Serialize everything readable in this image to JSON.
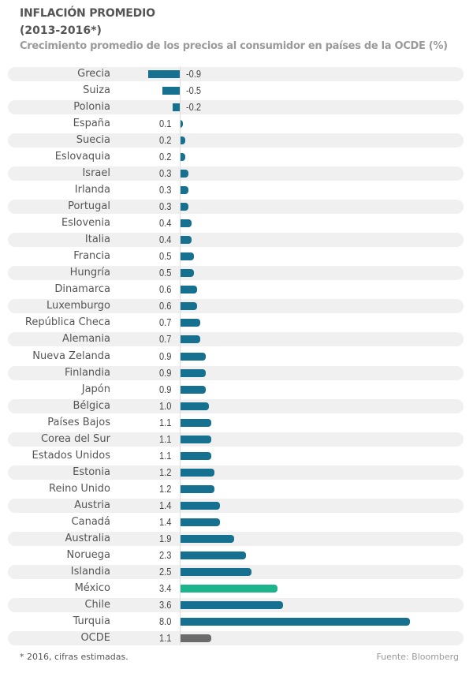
{
  "title": "INFLACIÓN PROMEDIO",
  "subtitle": "(2013-2016*)",
  "description": "Crecimiento promedio de los precios al consumidor en países de la OCDE (%)",
  "footnote": "* 2016, cifras estimadas.",
  "source": "Fuente: Bloomberg",
  "colors": {
    "default": "#16708f",
    "highlight": "#1db38b",
    "average": "#6b6b6b"
  },
  "chart_data": {
    "type": "bar",
    "orientation": "horizontal",
    "title": "INFLACIÓN PROMEDIO (2013-2016*)",
    "subtitle": "Crecimiento promedio de los precios al consumidor en países de la OCDE (%)",
    "xlabel": "",
    "ylabel": "",
    "grid": false,
    "categories": [
      "Grecia",
      "Suiza",
      "Polonia",
      "España",
      "Suecia",
      "Eslovaquia",
      "Israel",
      "Irlanda",
      "Portugal",
      "Eslovenia",
      "Italia",
      "Francia",
      "Hungría",
      "Dinamarca",
      "Luxemburgo",
      "República Checa",
      "Alemania",
      "Nueva Zelanda",
      "Finlandia",
      "Japón",
      "Bélgica",
      "Países Bajos",
      "Corea del Sur",
      "Estados Unidos",
      "Estonia",
      "Reino Unido",
      "Austria",
      "Canadá",
      "Australia",
      "Noruega",
      "Islandia",
      "México",
      "Chile",
      "Turquia",
      "OCDE"
    ],
    "values": [
      -0.9,
      -0.5,
      -0.2,
      0.1,
      0.2,
      0.2,
      0.3,
      0.3,
      0.3,
      0.4,
      0.4,
      0.5,
      0.5,
      0.6,
      0.6,
      0.7,
      0.7,
      0.9,
      0.9,
      0.9,
      1.0,
      1.1,
      1.1,
      1.1,
      1.2,
      1.2,
      1.4,
      1.4,
      1.9,
      2.3,
      2.5,
      3.4,
      3.6,
      8.0,
      1.1
    ],
    "labels": [
      "-0.9",
      "-0.5",
      "-0.2",
      "0.1",
      "0.2",
      "0.2",
      "0.3",
      "0.3",
      "0.3",
      "0.4",
      "0.4",
      "0.5",
      "0.5",
      "0.6",
      "0.6",
      "0.7",
      "0.7",
      "0.9",
      "0.9",
      "0.9",
      "1.0",
      "1.1",
      "1.1",
      "1.1",
      "1.2",
      "1.2",
      "1.4",
      "1.4",
      "1.9",
      "2.3",
      "2.5",
      "3.4",
      "3.6",
      "8.0",
      "1.1"
    ],
    "highlight": "México",
    "average": "OCDE"
  }
}
